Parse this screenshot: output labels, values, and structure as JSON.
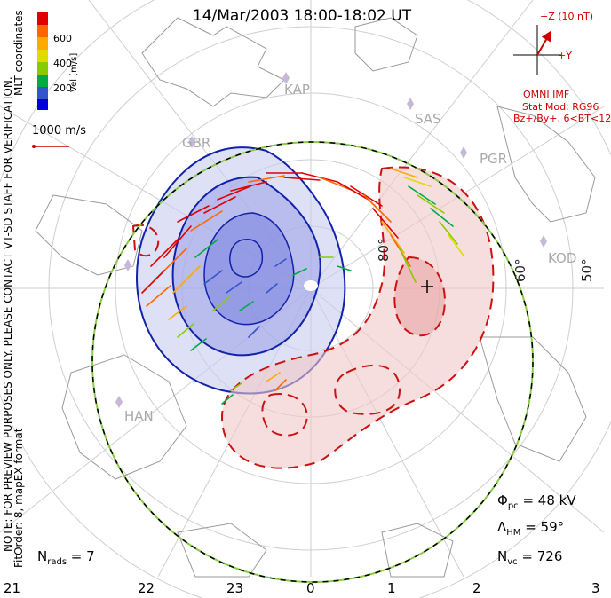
{
  "title": "14/Mar/2003 18:00-18:02 UT",
  "coords_label": "MLT coordinates",
  "velocity_scale": {
    "label": "Vel [m/s]",
    "ticks": [
      "600",
      "400",
      "200"
    ],
    "colors": [
      "#e00000",
      "#ff6600",
      "#ffaa00",
      "#dddd00",
      "#88cc00",
      "#00aa44",
      "#3355cc",
      "#0000dd"
    ]
  },
  "reference_vector": {
    "label": "1000 m/s"
  },
  "imf": {
    "z_label": "+Z (10 nT)",
    "y_label": "+Y",
    "source": "OMNI IMF",
    "model": "Stat Mod: RG96",
    "bins": "Bz+/By+, 6<BT<12"
  },
  "latitude_labels": [
    "80°",
    "60°",
    "50°"
  ],
  "stations": [
    "KAP",
    "SAS",
    "PGR",
    "GBR",
    "KOD",
    "HAN"
  ],
  "mlt_labels": [
    "21",
    "22",
    "23",
    "0",
    "1",
    "2",
    "3"
  ],
  "stats": {
    "phi_pc_symbol": "Φ",
    "phi_pc_sub": "pc",
    "phi_pc_value": " = 48 kV",
    "lambda_hm_symbol": "Λ",
    "lambda_hm_sub": "HM",
    "lambda_hm_value": " = 59°",
    "n_vc_symbol": "N",
    "n_vc_sub": "vc",
    "n_vc_value": " = 726",
    "n_rads_symbol": "N",
    "n_rads_sub": "rads",
    "n_rads_value": " = 7"
  },
  "notes": {
    "preview": "NOTE: FOR PREVIEW PURPOSES ONLY. PLEASE CONTACT VT-SD STAFF FOR VERIFICATION.",
    "fit": "FitOrder: 8,  mapEX format"
  },
  "contour_colors": {
    "positive": "#cc1111",
    "negative": "#1122aa",
    "boundary": "#88cc44"
  }
}
